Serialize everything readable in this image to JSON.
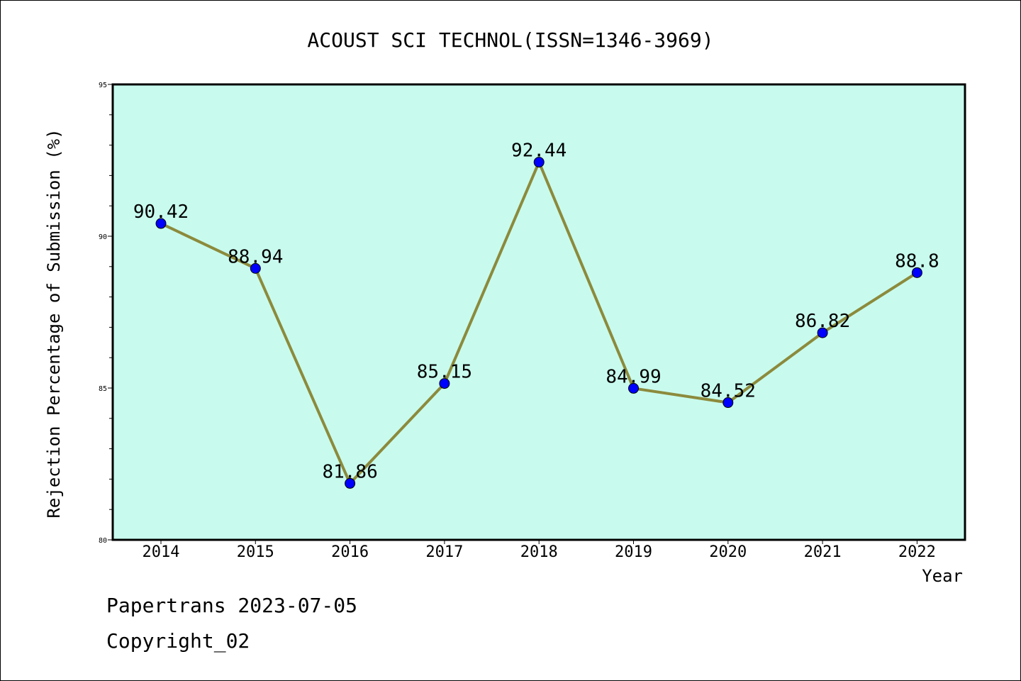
{
  "chart_data": {
    "type": "line",
    "title": "ACOUST SCI TECHNOL(ISSN=1346-3969)",
    "xlabel": "Year",
    "ylabel": "Rejection Percentage of Submission (%)",
    "categories": [
      "2014",
      "2015",
      "2016",
      "2017",
      "2018",
      "2019",
      "2020",
      "2021",
      "2022"
    ],
    "series": [
      {
        "values": [
          90.42,
          88.94,
          81.86,
          85.15,
          92.44,
          84.99,
          84.52,
          86.82,
          88.8
        ],
        "labels": [
          "90.42",
          "88.94",
          "81.86",
          "85.15",
          "92.44",
          "84.99",
          "84.52",
          "86.82",
          "88.8"
        ],
        "line_color": "#8c8a3c",
        "marker_color": "#0000ff"
      }
    ],
    "ylim": [
      80,
      95
    ],
    "yticks": [
      "80",
      "85",
      "90",
      "95"
    ],
    "plot_background": "#c8fbee",
    "grid": false,
    "legend": "none"
  },
  "footer": {
    "line1": "Papertrans 2023-07-05",
    "line2": "Copyright_02"
  }
}
